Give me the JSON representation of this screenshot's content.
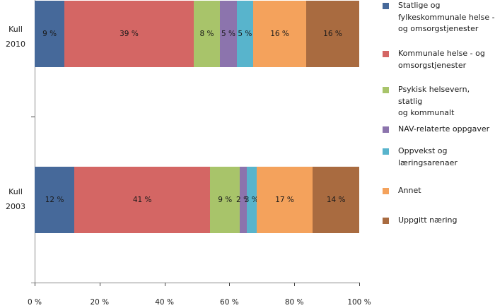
{
  "chart_data": {
    "type": "bar",
    "orientation": "horizontal",
    "stacked": "percent",
    "title": "",
    "xlabel": "",
    "ylabel": "",
    "xlim": [
      0,
      100
    ],
    "x_ticks": [
      "0 %",
      "20 %",
      "40 %",
      "60 %",
      "80 %",
      "100 %"
    ],
    "categories": [
      "Kull 2010",
      "Kull 2003"
    ],
    "series": [
      {
        "name": "Statlige og fylkeskommunale helse - og omsorgstjenester",
        "color": "#46699A",
        "values": [
          9,
          12
        ],
        "labels": [
          "9 %",
          "12 %"
        ]
      },
      {
        "name": "Kommunale helse - og omsorgstjenester",
        "color": "#D46664",
        "values": [
          39,
          41
        ],
        "labels": [
          "39 %",
          "41 %"
        ]
      },
      {
        "name": "Psykisk helsevern, statlig og kommunalt",
        "color": "#A8C46A",
        "values": [
          8,
          9
        ],
        "labels": [
          "8 %",
          "9 %"
        ]
      },
      {
        "name": "NAV-relaterte oppgaver",
        "color": "#8C74AD",
        "values": [
          5,
          2
        ],
        "labels": [
          "5 %",
          "2 %"
        ]
      },
      {
        "name": "Oppvekst og læringsarenaer",
        "color": "#58B4CC",
        "values": [
          5,
          3
        ],
        "labels": [
          "5 %",
          "3 %"
        ]
      },
      {
        "name": "Annet",
        "color": "#F4A25C",
        "values": [
          16,
          17
        ],
        "labels": [
          "16 %",
          "17 %"
        ]
      },
      {
        "name": "Uppgitt næring",
        "color": "#A96B40",
        "values": [
          16,
          14
        ],
        "labels": [
          "16 %",
          "14 %"
        ]
      }
    ],
    "legend_position": "right",
    "grid": false
  },
  "axis": {
    "x_ticks": [
      "0 %",
      "20 %",
      "40 %",
      "60 %",
      "80 %",
      "100 %"
    ],
    "categories": [
      {
        "line1": "Kull",
        "line2": "2010"
      },
      {
        "line1": "Kull",
        "line2": "2003"
      }
    ]
  },
  "legend": [
    {
      "lines": [
        "Statlige og",
        "fylkeskommunale helse -",
        "og omsorgstjenester"
      ]
    },
    {
      "lines": [
        "Kommunale helse -  og",
        "omsorgstjenester"
      ]
    },
    {
      "lines": [
        "Psykisk helsevern, statlig",
        "og kommunalt"
      ]
    },
    {
      "lines": [
        "NAV-relaterte oppgaver"
      ]
    },
    {
      "lines": [
        "Oppvekst og",
        "læringsarenaer"
      ]
    },
    {
      "lines": [
        "Annet"
      ]
    },
    {
      "lines": [
        "Uppgitt næring"
      ]
    }
  ]
}
